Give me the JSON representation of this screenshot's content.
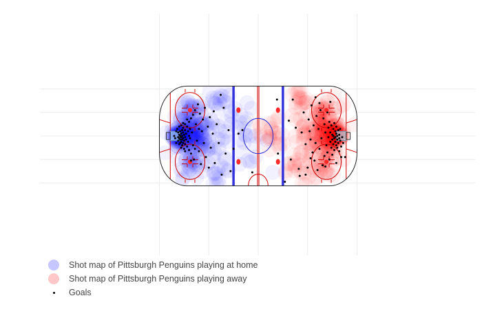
{
  "chart_data": {
    "type": "scatter",
    "title": "",
    "xlabel": "",
    "ylabel": "",
    "xlim": [
      -100,
      100
    ],
    "ylim": [
      -42.5,
      42.5
    ],
    "grid": true,
    "legend_position": "bottom-left",
    "colors": {
      "home": "#0000ff",
      "away": "#ff0000",
      "goals": "#000000",
      "blue_line": "#3333dd",
      "center_line": "#e77a7a",
      "rink_red": "#cc0000"
    },
    "series": [
      {
        "name": "Shot map of Pittsburgh Penguins playing  at home",
        "kind": "density",
        "color": "#0000ff",
        "hotspots": [
          {
            "x": -80,
            "y": 0,
            "spread": 6,
            "weight": 60
          },
          {
            "x": -70,
            "y": 0,
            "spread": 12,
            "weight": 70
          },
          {
            "x": -69,
            "y": 22,
            "spread": 12,
            "weight": 30
          },
          {
            "x": -69,
            "y": -22,
            "spread": 12,
            "weight": 30
          },
          {
            "x": -55,
            "y": 0,
            "spread": 22,
            "weight": 70
          },
          {
            "x": -40,
            "y": 30,
            "spread": 10,
            "weight": 15
          },
          {
            "x": -40,
            "y": -30,
            "spread": 10,
            "weight": 15
          },
          {
            "x": -15,
            "y": 0,
            "spread": 22,
            "weight": 25
          }
        ]
      },
      {
        "name": "Shot map of Pittsburgh Penguins playing  away",
        "kind": "density",
        "color": "#ff0000",
        "hotspots": [
          {
            "x": 80,
            "y": 0,
            "spread": 6,
            "weight": 60
          },
          {
            "x": 70,
            "y": 0,
            "spread": 12,
            "weight": 70
          },
          {
            "x": 69,
            "y": 22,
            "spread": 12,
            "weight": 30
          },
          {
            "x": 69,
            "y": -22,
            "spread": 12,
            "weight": 30
          },
          {
            "x": 55,
            "y": 0,
            "spread": 22,
            "weight": 70
          },
          {
            "x": 40,
            "y": 30,
            "spread": 10,
            "weight": 15
          },
          {
            "x": 40,
            "y": -30,
            "spread": 10,
            "weight": 15
          },
          {
            "x": 15,
            "y": 0,
            "spread": 22,
            "weight": 25
          }
        ]
      },
      {
        "name": "Goals",
        "kind": "points",
        "color": "#000000",
        "points": [
          [
            -82,
            6
          ],
          [
            -81,
            3
          ],
          [
            -81,
            -1
          ],
          [
            -81,
            -4
          ],
          [
            -80,
            8
          ],
          [
            -80,
            1
          ],
          [
            -80,
            -2
          ],
          [
            -80,
            -7
          ],
          [
            -79,
            4
          ],
          [
            -79,
            0
          ],
          [
            -79,
            -3
          ],
          [
            -79,
            -6
          ],
          [
            -78,
            9
          ],
          [
            -78,
            2
          ],
          [
            -78,
            -1
          ],
          [
            -78,
            -5
          ],
          [
            -78,
            -10
          ],
          [
            -77,
            5
          ],
          [
            -77,
            0
          ],
          [
            -77,
            -3
          ],
          [
            -77,
            -8
          ],
          [
            -76,
            7
          ],
          [
            -76,
            3
          ],
          [
            -76,
            -2
          ],
          [
            -76,
            -6
          ],
          [
            -75,
            1
          ],
          [
            -75,
            -4
          ],
          [
            -75,
            -11
          ],
          [
            -74,
            10
          ],
          [
            -74,
            5
          ],
          [
            -74,
            -1
          ],
          [
            -74,
            -7
          ],
          [
            -73,
            2
          ],
          [
            -73,
            -3
          ],
          [
            -72,
            8
          ],
          [
            -72,
            -9
          ],
          [
            -71,
            4
          ],
          [
            -71,
            -5
          ],
          [
            -70,
            12
          ],
          [
            -70,
            0
          ],
          [
            -70,
            -12
          ],
          [
            -69,
            6
          ],
          [
            -69,
            -2
          ],
          [
            -68,
            15
          ],
          [
            -68,
            -15
          ],
          [
            -67,
            3
          ],
          [
            -66,
            18
          ],
          [
            -66,
            -8
          ],
          [
            -65,
            -20
          ],
          [
            -64,
            22
          ],
          [
            -63,
            10
          ],
          [
            -62,
            -4
          ],
          [
            -61,
            27
          ],
          [
            -60,
            -13
          ],
          [
            -59,
            19
          ],
          [
            -58,
            -24
          ],
          [
            -57,
            4
          ],
          [
            -56,
            14
          ],
          [
            -55,
            -6
          ],
          [
            -54,
            24
          ],
          [
            -53,
            -18
          ],
          [
            -51,
            8
          ],
          [
            -50,
            -27
          ],
          [
            -49,
            16
          ],
          [
            -48,
            -10
          ],
          [
            -46,
            2
          ],
          [
            -45,
            21
          ],
          [
            -44,
            -23
          ],
          [
            -42,
            10
          ],
          [
            -40,
            -6
          ],
          [
            -38,
            35
          ],
          [
            -37,
            -33
          ],
          [
            -35,
            24
          ],
          [
            -33,
            -15
          ],
          [
            -30,
            5
          ],
          [
            -28,
            -30
          ],
          [
            -25,
            -11
          ],
          [
            -20,
            2
          ],
          [
            -16,
            5
          ],
          [
            -6,
            -31
          ],
          [
            -84,
            -2
          ],
          [
            -83,
            4
          ],
          [
            -85,
            0
          ],
          [
            -83,
            -6
          ],
          [
            -76,
            11
          ],
          [
            -74,
            -13
          ],
          [
            -72,
            14
          ],
          [
            -68,
            -21
          ],
          [
            -64,
            -11
          ],
          [
            -60,
            6
          ],
          [
            19,
            31
          ],
          [
            20,
            -15
          ],
          [
            31,
            13
          ],
          [
            33,
            -20
          ],
          [
            38,
            7
          ],
          [
            41,
            -28
          ],
          [
            44,
            3
          ],
          [
            46,
            20
          ],
          [
            48,
            -7
          ],
          [
            50,
            -27
          ],
          [
            51,
            14
          ],
          [
            52,
            4
          ],
          [
            53,
            -3
          ],
          [
            54,
            26
          ],
          [
            55,
            -14
          ],
          [
            56,
            9
          ],
          [
            57,
            -21
          ],
          [
            58,
            -6
          ],
          [
            59,
            17
          ],
          [
            60,
            -29
          ],
          [
            61,
            6
          ],
          [
            62,
            -11
          ],
          [
            63,
            22
          ],
          [
            64,
            -2
          ],
          [
            65,
            -25
          ],
          [
            66,
            15
          ],
          [
            67,
            10
          ],
          [
            67,
            -17
          ],
          [
            68,
            3
          ],
          [
            69,
            -8
          ],
          [
            70,
            20
          ],
          [
            70,
            -14
          ],
          [
            71,
            7
          ],
          [
            71,
            -1
          ],
          [
            72,
            -20
          ],
          [
            72,
            12
          ],
          [
            73,
            3
          ],
          [
            73,
            -5
          ],
          [
            74,
            9
          ],
          [
            74,
            -10
          ],
          [
            75,
            1
          ],
          [
            75,
            -3
          ],
          [
            75,
            -16
          ],
          [
            76,
            6
          ],
          [
            76,
            0
          ],
          [
            76,
            -7
          ],
          [
            77,
            11
          ],
          [
            77,
            -2
          ],
          [
            77,
            -12
          ],
          [
            78,
            4
          ],
          [
            78,
            -1
          ],
          [
            78,
            -5
          ],
          [
            79,
            8
          ],
          [
            79,
            2
          ],
          [
            79,
            -8
          ],
          [
            80,
            0
          ],
          [
            80,
            -3
          ],
          [
            80,
            -10
          ],
          [
            81,
            5
          ],
          [
            81,
            -6
          ],
          [
            82,
            1
          ],
          [
            82,
            -2
          ],
          [
            82,
            -13
          ],
          [
            83,
            -4
          ],
          [
            83,
            6
          ],
          [
            84,
            -9
          ],
          [
            84,
            -18
          ],
          [
            85,
            -1
          ],
          [
            86,
            -6
          ],
          [
            88,
            -18
          ],
          [
            42,
            -34
          ],
          [
            48,
            -33
          ],
          [
            27,
            -39
          ],
          [
            35,
            31
          ],
          [
            58,
            33
          ],
          [
            73,
            29
          ],
          [
            68,
            -26
          ],
          [
            79,
            -23
          ],
          [
            62,
            28
          ],
          [
            53,
            -19
          ]
        ]
      }
    ]
  }
}
